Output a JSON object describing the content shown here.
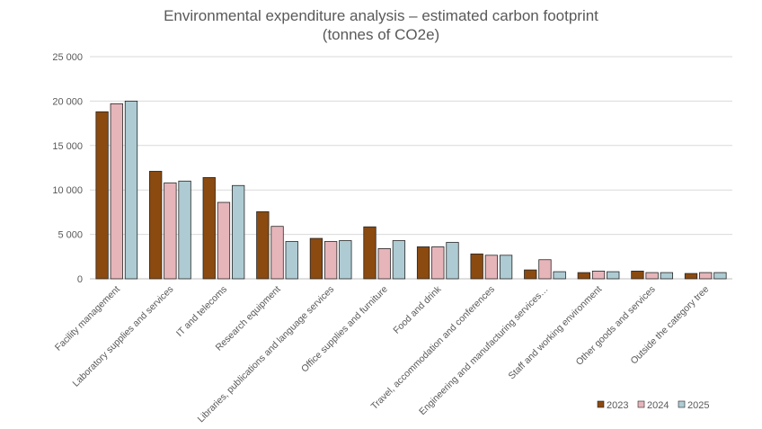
{
  "chart_data": {
    "type": "bar",
    "title": "Environmental expenditure analysis – estimated carbon footprint",
    "subtitle": "(tonnes of CO2e)",
    "xlabel": "",
    "ylabel": "",
    "ylim": [
      0,
      25000
    ],
    "yticks": [
      0,
      5000,
      10000,
      15000,
      20000,
      25000
    ],
    "ytick_labels": [
      "0",
      "5 000",
      "10 000",
      "15 000",
      "20 000",
      "25 000"
    ],
    "grid": true,
    "legend_position": "bottom-right",
    "categories": [
      "Facility management",
      "Laboratory supplies and services",
      "IT and telecoms",
      "Research equipment",
      "Libraries, publications and language services",
      "Office supplies and furniture",
      "Food and drink",
      "Travel, accommodation and conferences",
      "Engineering and manufacturing services…",
      "Staff and working environment",
      "Other goods and services",
      "Outside the category tree"
    ],
    "series": [
      {
        "name": "2023",
        "color": "#8B4A10",
        "values": [
          18800,
          12100,
          11400,
          7550,
          4550,
          5850,
          3600,
          2800,
          1000,
          700,
          870,
          600
        ]
      },
      {
        "name": "2024",
        "color": "#E6B5BA",
        "values": [
          19700,
          10800,
          8600,
          5900,
          4200,
          3400,
          3600,
          2650,
          2150,
          870,
          700,
          700
        ]
      },
      {
        "name": "2025",
        "color": "#AECBD3",
        "values": [
          20000,
          11000,
          10500,
          4200,
          4300,
          4300,
          4100,
          2650,
          800,
          800,
          700,
          700
        ]
      }
    ]
  }
}
